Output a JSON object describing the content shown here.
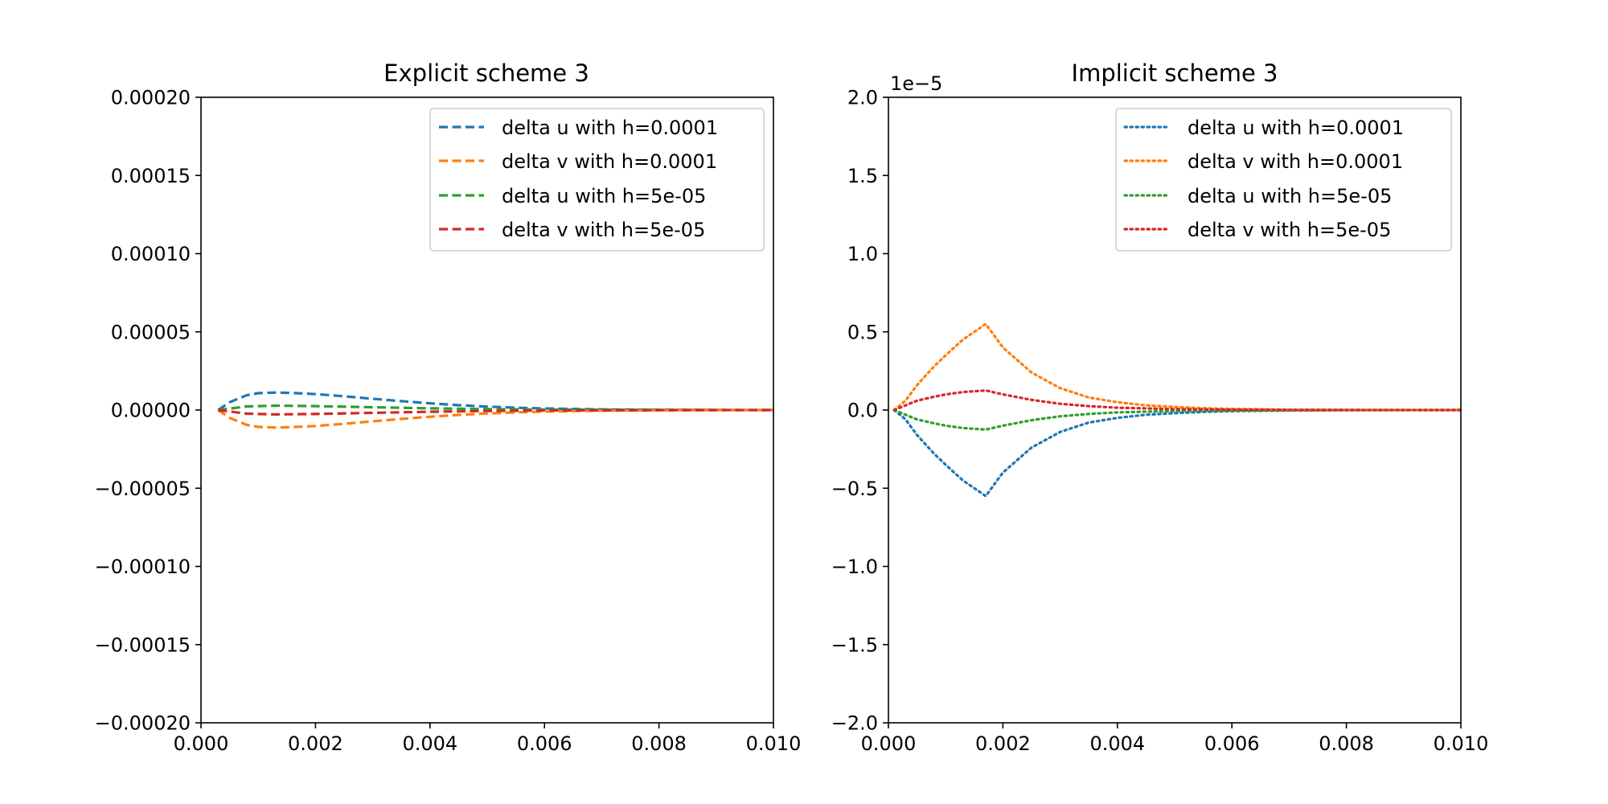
{
  "chart_data": [
    {
      "type": "line",
      "title": "Explicit scheme 3",
      "xlabel": "",
      "ylabel": "",
      "xlim": [
        0.0,
        0.01
      ],
      "ylim": [
        -0.0002,
        0.0002
      ],
      "x_tick_labels": [
        "0.000",
        "0.002",
        "0.004",
        "0.006",
        "0.008",
        "0.010"
      ],
      "x_tick_values": [
        0.0,
        0.002,
        0.004,
        0.006,
        0.008,
        0.01
      ],
      "y_tick_labels": [
        "0.00020",
        "0.00015",
        "0.00010",
        "0.00005",
        "0.00000",
        "−0.00005",
        "−0.00010",
        "−0.00015",
        "−0.00020"
      ],
      "y_tick_values": [
        0.0002,
        0.00015,
        0.0001,
        5e-05,
        0.0,
        -5e-05,
        -0.0001,
        -0.00015,
        -0.0002
      ],
      "y_offset_label": "",
      "line_style": "dashed",
      "legend_position": "upper right",
      "series": [
        {
          "name": "delta u with h=0.0001",
          "color": "#1f77b4",
          "x": [
            0.0003,
            0.0005,
            0.0008,
            0.001,
            0.0013,
            0.0016,
            0.002,
            0.0025,
            0.003,
            0.0035,
            0.004,
            0.0045,
            0.005,
            0.0055,
            0.006,
            0.007,
            0.008,
            0.009,
            0.01
          ],
          "y": [
            0.0,
            5e-06,
            9.5e-06,
            1.08e-05,
            1.12e-05,
            1.09e-05,
            1.02e-05,
            8.8e-06,
            7.2e-06,
            5.7e-06,
            4.3e-06,
            3.1e-06,
            2.2e-06,
            1.5e-06,
            1e-06,
            4e-07,
            2e-07,
            1e-07,
            0.0
          ]
        },
        {
          "name": "delta v with h=0.0001",
          "color": "#ff7f0e",
          "x": [
            0.0003,
            0.0005,
            0.0008,
            0.001,
            0.0013,
            0.0016,
            0.002,
            0.0025,
            0.003,
            0.0035,
            0.004,
            0.0045,
            0.005,
            0.0055,
            0.006,
            0.007,
            0.008,
            0.009,
            0.01
          ],
          "y": [
            0.0,
            -5e-06,
            -9.5e-06,
            -1.08e-05,
            -1.12e-05,
            -1.09e-05,
            -1.02e-05,
            -8.8e-06,
            -7.2e-06,
            -5.7e-06,
            -4.3e-06,
            -3.1e-06,
            -2.2e-06,
            -1.5e-06,
            -1e-06,
            -4e-07,
            -2e-07,
            -1e-07,
            0.0
          ]
        },
        {
          "name": "delta u with h=5e-05",
          "color": "#2ca02c",
          "x": [
            0.0003,
            0.0008,
            0.0013,
            0.002,
            0.003,
            0.004,
            0.005,
            0.006,
            0.008,
            0.01
          ],
          "y": [
            0.0,
            2.3e-06,
            2.8e-06,
            2.5e-06,
            1.8e-06,
            1.1e-06,
            6e-07,
            3e-07,
            1e-07,
            0.0
          ]
        },
        {
          "name": "delta v with h=5e-05",
          "color": "#d62728",
          "x": [
            0.0003,
            0.0008,
            0.0013,
            0.002,
            0.003,
            0.004,
            0.005,
            0.006,
            0.008,
            0.01
          ],
          "y": [
            0.0,
            -2.3e-06,
            -2.8e-06,
            -2.5e-06,
            -1.8e-06,
            -1.1e-06,
            -6e-07,
            -3e-07,
            -1e-07,
            0.0
          ]
        }
      ]
    },
    {
      "type": "line",
      "title": "Implicit scheme 3",
      "xlabel": "",
      "ylabel": "",
      "xlim": [
        0.0,
        0.01
      ],
      "ylim": [
        -2.0,
        2.0
      ],
      "x_tick_labels": [
        "0.000",
        "0.002",
        "0.004",
        "0.006",
        "0.008",
        "0.010"
      ],
      "x_tick_values": [
        0.0,
        0.002,
        0.004,
        0.006,
        0.008,
        0.01
      ],
      "y_tick_labels": [
        "2.0",
        "1.5",
        "1.0",
        "0.5",
        "0.0",
        "−0.5",
        "−1.0",
        "−1.5",
        "−2.0"
      ],
      "y_tick_values": [
        2.0,
        1.5,
        1.0,
        0.5,
        0.0,
        -0.5,
        -1.0,
        -1.5,
        -2.0
      ],
      "y_offset_label": "1e−5",
      "line_style": "dotted",
      "legend_position": "upper right",
      "series": [
        {
          "name": "delta u with h=0.0001",
          "color": "#1f77b4",
          "x": [
            0.0001,
            0.0003,
            0.0005,
            0.0008,
            0.001,
            0.0013,
            0.0017,
            0.002,
            0.0025,
            0.003,
            0.0035,
            0.004,
            0.0045,
            0.005,
            0.0055,
            0.006,
            0.007,
            0.008,
            0.009,
            0.01
          ],
          "y": [
            0.0,
            -0.06,
            -0.16,
            -0.28,
            -0.35,
            -0.45,
            -0.55,
            -0.4,
            -0.24,
            -0.14,
            -0.08,
            -0.05,
            -0.03,
            -0.02,
            -0.012,
            -0.007,
            -0.003,
            -0.001,
            -0.0005,
            0.0
          ]
        },
        {
          "name": "delta v with h=0.0001",
          "color": "#ff7f0e",
          "x": [
            0.0001,
            0.0003,
            0.0005,
            0.0008,
            0.001,
            0.0013,
            0.0017,
            0.002,
            0.0025,
            0.003,
            0.0035,
            0.004,
            0.0045,
            0.005,
            0.0055,
            0.006,
            0.007,
            0.008,
            0.009,
            0.01
          ],
          "y": [
            0.0,
            0.06,
            0.16,
            0.28,
            0.35,
            0.45,
            0.55,
            0.4,
            0.24,
            0.14,
            0.08,
            0.05,
            0.03,
            0.02,
            0.012,
            0.007,
            0.003,
            0.001,
            0.0005,
            0.0
          ]
        },
        {
          "name": "delta u with h=5e-05",
          "color": "#2ca02c",
          "x": [
            0.0001,
            0.0003,
            0.0005,
            0.0008,
            0.001,
            0.0013,
            0.0017,
            0.002,
            0.0025,
            0.003,
            0.0035,
            0.004,
            0.005,
            0.006,
            0.007,
            0.008,
            0.01
          ],
          "y": [
            0.0,
            -0.03,
            -0.06,
            -0.085,
            -0.1,
            -0.115,
            -0.125,
            -0.1,
            -0.065,
            -0.04,
            -0.025,
            -0.015,
            -0.006,
            -0.003,
            -0.001,
            -0.0005,
            0.0
          ]
        },
        {
          "name": "delta v with h=5e-05",
          "color": "#d62728",
          "x": [
            0.0001,
            0.0003,
            0.0005,
            0.0008,
            0.001,
            0.0013,
            0.0017,
            0.002,
            0.0025,
            0.003,
            0.0035,
            0.004,
            0.005,
            0.006,
            0.007,
            0.008,
            0.01
          ],
          "y": [
            0.0,
            0.03,
            0.06,
            0.085,
            0.1,
            0.115,
            0.125,
            0.1,
            0.065,
            0.04,
            0.025,
            0.015,
            0.006,
            0.003,
            0.001,
            0.0005,
            0.0
          ]
        }
      ]
    }
  ]
}
